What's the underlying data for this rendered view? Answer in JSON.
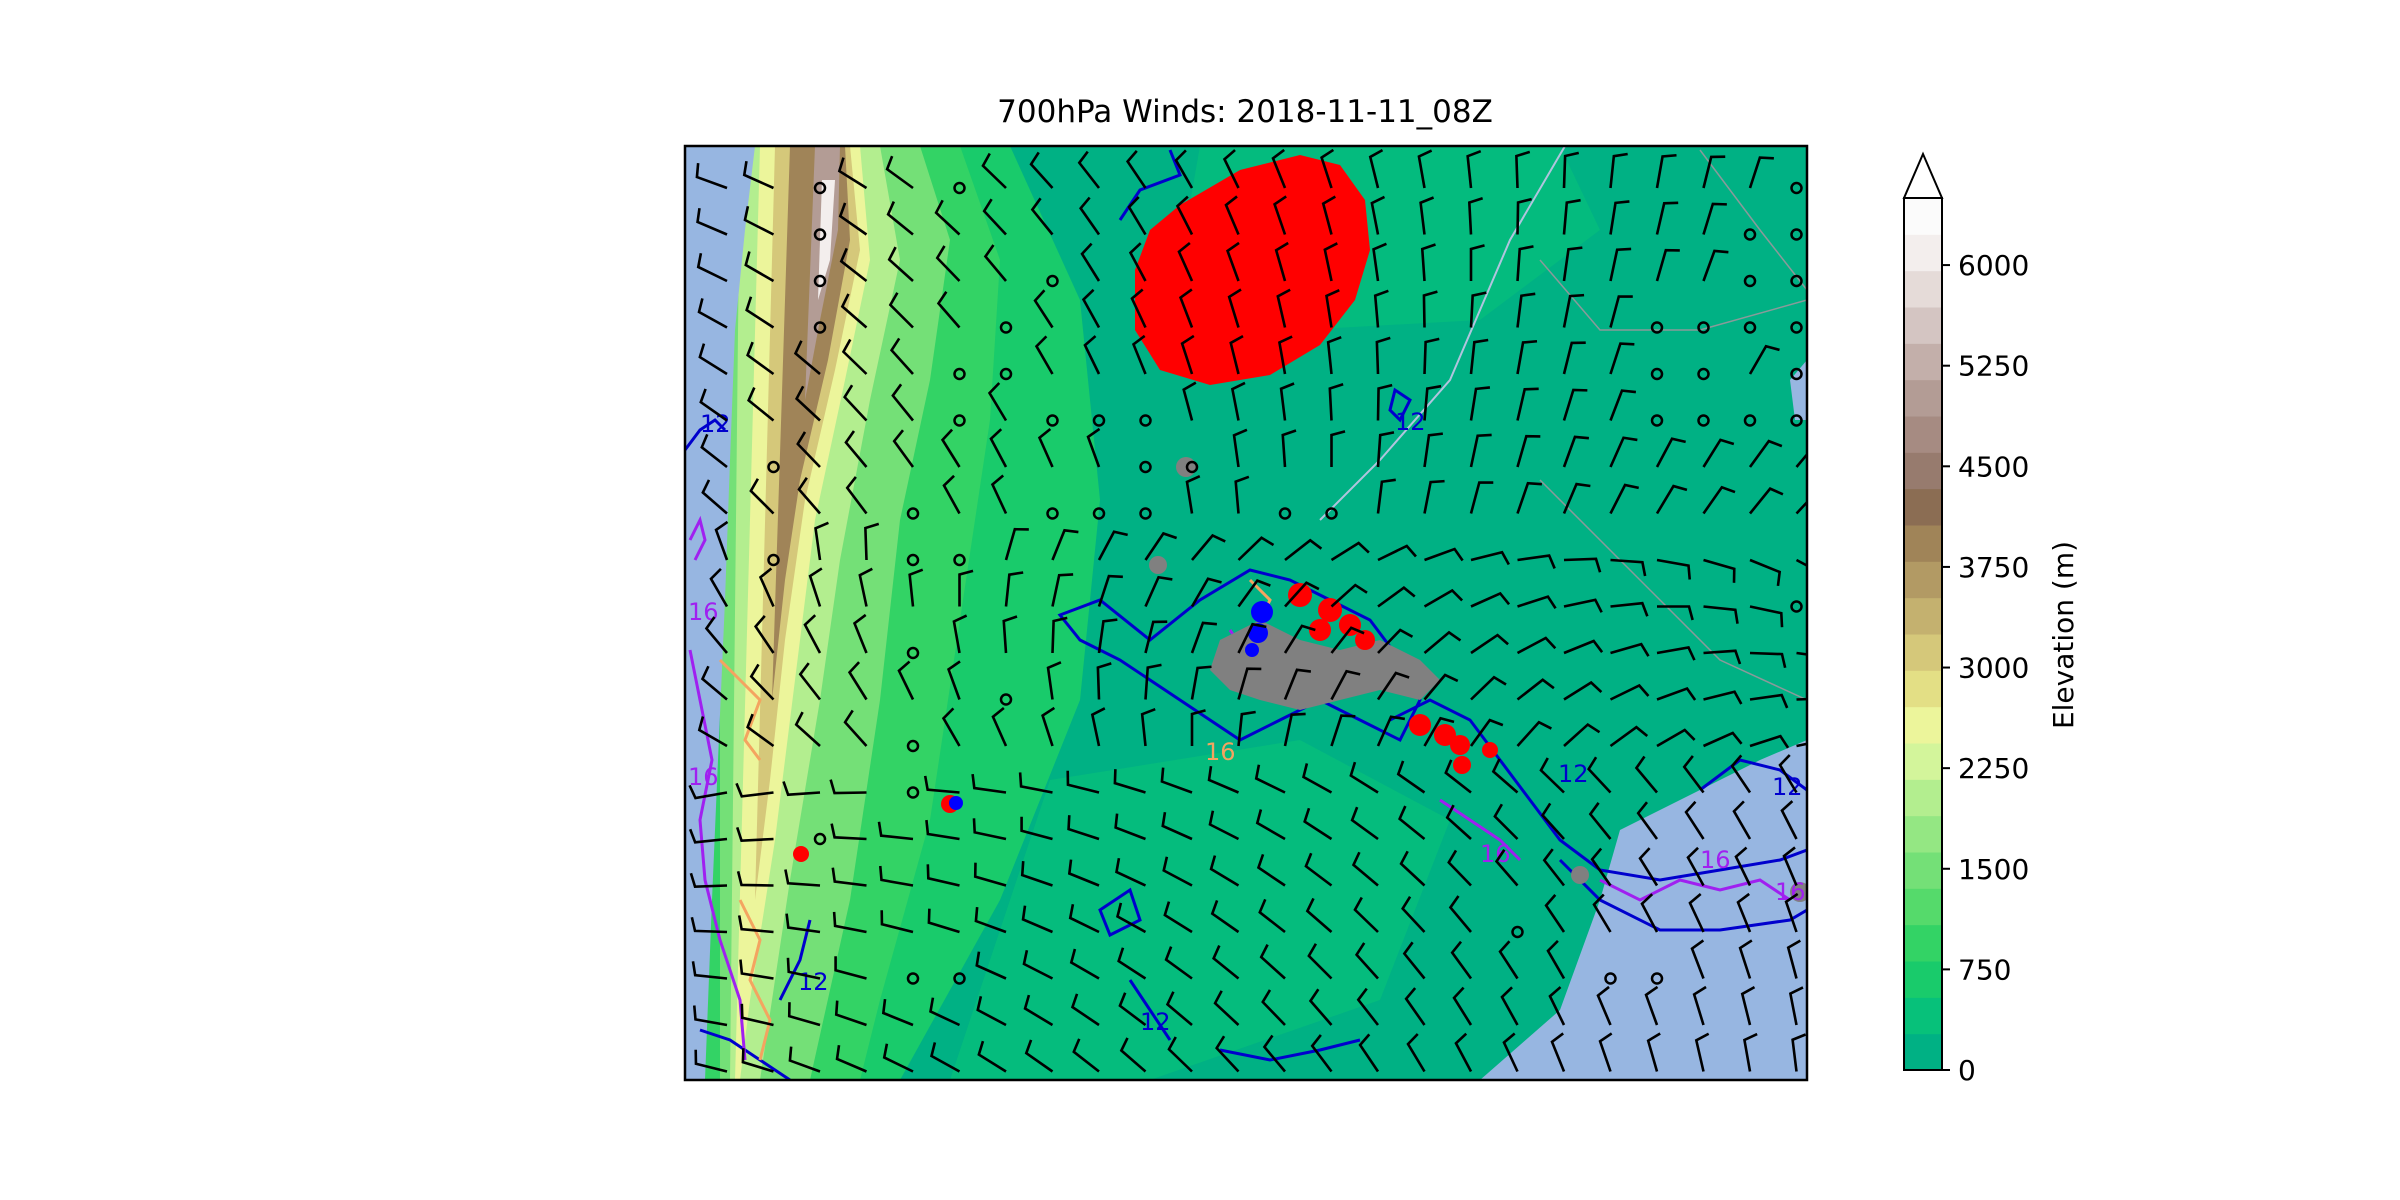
{
  "title": "700hPa Winds: 2018-11-11_08Z",
  "colorbar": {
    "label": "Elevation (m)",
    "ticks": [
      0,
      750,
      1500,
      2250,
      3000,
      3750,
      4500,
      5250,
      6000
    ],
    "tick_labels": [
      "0",
      "750",
      "1500",
      "2250",
      "3000",
      "3750",
      "4500",
      "5250",
      "6000"
    ],
    "min": 0,
    "max": 6500,
    "extend": "max",
    "colors": [
      "#00b184",
      "#07c17a",
      "#19cb6b",
      "#33d365",
      "#55da6b",
      "#74e077",
      "#94e783",
      "#b3ee8f",
      "#d3f59b",
      "#ecf59b",
      "#e3df85",
      "#d5c87a",
      "#c4b16f",
      "#b29a64",
      "#a08458",
      "#8b6d53",
      "#977b6e",
      "#a68b82",
      "#b39c95",
      "#c3afaa",
      "#d4c5c2",
      "#e5dbd8",
      "#f3eeed",
      "#fbfbfb"
    ]
  },
  "map": {
    "ocean_color": "#97b6e1",
    "contour_levels": [
      "12",
      "16"
    ],
    "contour_colors": {
      "blue": "#0000cd",
      "purple": "#a020f0",
      "orange": "#f4a460"
    },
    "marker_colors": {
      "red": "#ff0000",
      "blue": "#0000ff",
      "gray": "#808080"
    }
  }
}
